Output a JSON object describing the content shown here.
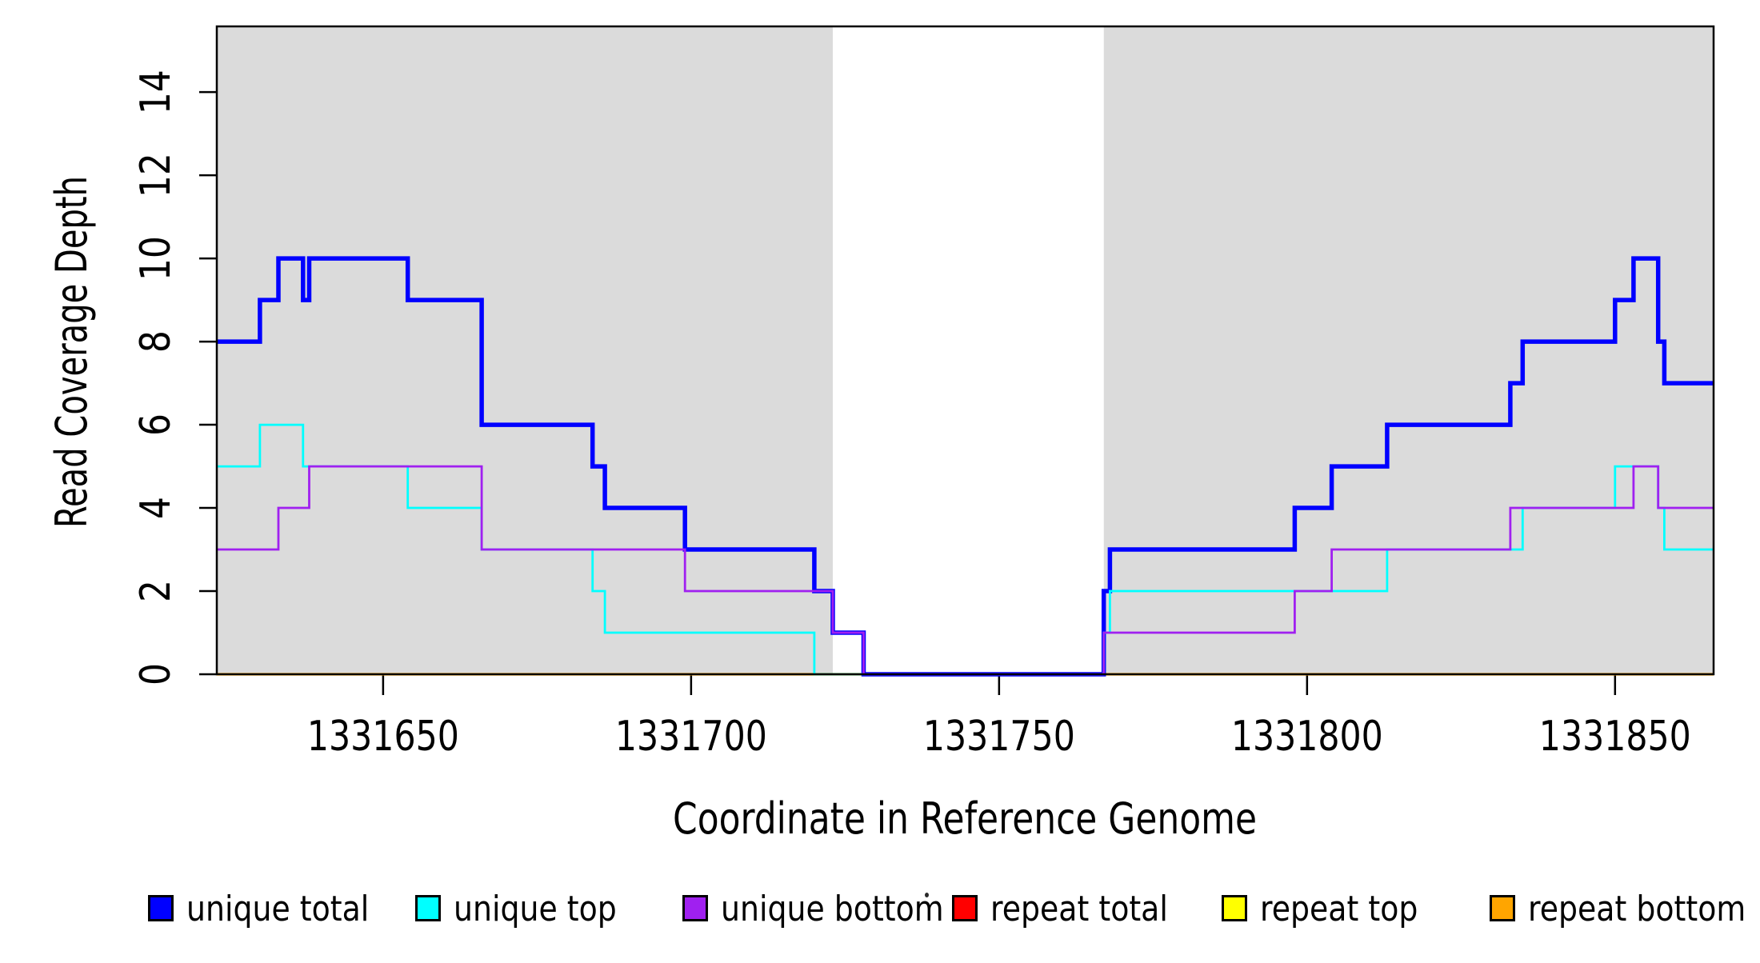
{
  "chart_data": {
    "type": "line",
    "subtype": "step",
    "title": "",
    "xlabel": "Coordinate in Reference Genome",
    "ylabel": "Read Coverage Depth",
    "xlim": [
      1331623,
      1331866
    ],
    "ylim": [
      0,
      15.58
    ],
    "x_ticks": [
      "1331650",
      "1331700",
      "1331750",
      "1331800",
      "1331850"
    ],
    "x_tick_values": [
      1331650,
      1331700,
      1331750,
      1331800,
      1331850
    ],
    "y_ticks": [
      "0",
      "2",
      "4",
      "6",
      "8",
      "10",
      "12",
      "14"
    ],
    "y_tick_values": [
      0,
      2,
      4,
      6,
      8,
      10,
      12,
      14
    ],
    "grid": false,
    "background_color": "#ffffff",
    "shaded_regions": [
      {
        "name": "left-gray-region",
        "x0": 1331623,
        "x1": 1331723,
        "color": "#dbdbdb"
      },
      {
        "name": "right-gray-region",
        "x0": 1331767,
        "x1": 1331866,
        "color": "#dbdbdb"
      }
    ],
    "series": [
      {
        "name": "repeat total",
        "color": "#ff0000",
        "width": 2.6,
        "points": [
          [
            1331623,
            0
          ]
        ]
      },
      {
        "name": "repeat top",
        "color": "#ffff00",
        "width": 2.6,
        "points": [
          [
            1331623,
            0
          ]
        ]
      },
      {
        "name": "repeat bottom",
        "color": "#ffa500",
        "width": 3.2,
        "points": [
          [
            1331623,
            0
          ]
        ]
      },
      {
        "name": "unique total",
        "color": "#0000ff",
        "width": 5.5,
        "points": [
          [
            1331623,
            8
          ],
          [
            1331630,
            9
          ],
          [
            1331633,
            10
          ],
          [
            1331637,
            9
          ],
          [
            1331638,
            10
          ],
          [
            1331654,
            9
          ],
          [
            1331666,
            6
          ],
          [
            1331684,
            5
          ],
          [
            1331686,
            4
          ],
          [
            1331699,
            3
          ],
          [
            1331720,
            2
          ],
          [
            1331723,
            1
          ],
          [
            1331728,
            0
          ],
          [
            1331767,
            2
          ],
          [
            1331768,
            3
          ],
          [
            1331798,
            4
          ],
          [
            1331804,
            5
          ],
          [
            1331813,
            6
          ],
          [
            1331833,
            7
          ],
          [
            1331835,
            8
          ],
          [
            1331850,
            9
          ],
          [
            1331853,
            10
          ],
          [
            1331857,
            8
          ],
          [
            1331858,
            7
          ]
        ]
      },
      {
        "name": "unique top",
        "color": "#00ffff",
        "width": 2.8,
        "points": [
          [
            1331623,
            5
          ],
          [
            1331630,
            6
          ],
          [
            1331637,
            5
          ],
          [
            1331654,
            4
          ],
          [
            1331666,
            3
          ],
          [
            1331684,
            2
          ],
          [
            1331686,
            1
          ],
          [
            1331720,
            0
          ],
          [
            1331767,
            1
          ],
          [
            1331768,
            2
          ],
          [
            1331813,
            3
          ],
          [
            1331835,
            4
          ],
          [
            1331850,
            5
          ],
          [
            1331857,
            4
          ],
          [
            1331858,
            3
          ]
        ]
      },
      {
        "name": "unique bottom",
        "color": "#a020f0",
        "width": 2.8,
        "points": [
          [
            1331623,
            3
          ],
          [
            1331633,
            4
          ],
          [
            1331638,
            5
          ],
          [
            1331666,
            3
          ],
          [
            1331699,
            2
          ],
          [
            1331723,
            1
          ],
          [
            1331728,
            0
          ],
          [
            1331767,
            1
          ],
          [
            1331798,
            2
          ],
          [
            1331804,
            3
          ],
          [
            1331833,
            4
          ],
          [
            1331853,
            5
          ],
          [
            1331857,
            4
          ]
        ]
      }
    ],
    "legend_position": "bottom",
    "legend": [
      {
        "label": "unique total",
        "color": "#0000ff"
      },
      {
        "label": "unique top",
        "color": "#00ffff"
      },
      {
        "label": "unique bottom",
        "color": "#a020f0"
      },
      {
        "label": "repeat total",
        "color": "#ff0000"
      },
      {
        "label": "repeat top",
        "color": "#ffff00"
      },
      {
        "label": "repeat bottom",
        "color": "#ffa500"
      }
    ]
  }
}
